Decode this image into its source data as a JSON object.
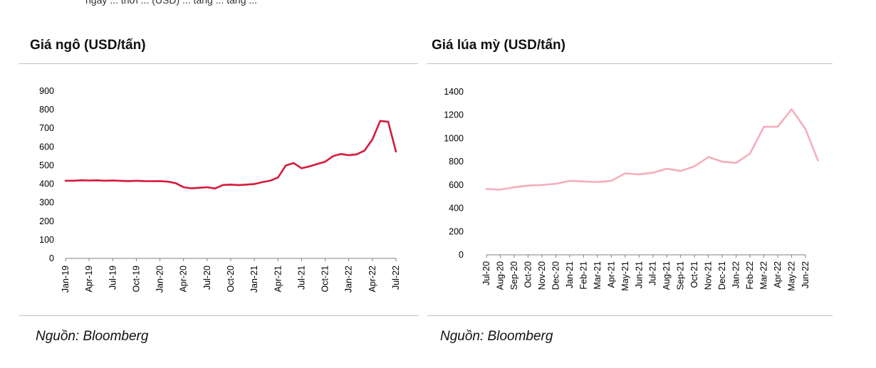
{
  "top_caption": "ngày ... thời ... (USD) ... tăng ... tăng ...",
  "chart_data": [
    {
      "type": "line",
      "title": "Giá ngô (USD/tấn)",
      "source": "Nguồn: Bloomberg",
      "ylim": [
        0,
        900
      ],
      "yticks": [
        0,
        100,
        200,
        300,
        400,
        500,
        600,
        700,
        800,
        900
      ],
      "xtick_labels": [
        "Jan-19",
        "Apr-19",
        "Jul-19",
        "Oct-19",
        "Jan-20",
        "Apr-20",
        "Jul-20",
        "Oct-20",
        "Jan-21",
        "Apr-21",
        "Jul-21",
        "Oct-21",
        "Jan-22",
        "Apr-22",
        "Jul-22"
      ],
      "color": "#d7193b",
      "grid": false,
      "series": [
        {
          "x": [
            "Jan-19",
            "Feb-19",
            "Mar-19",
            "Apr-19",
            "May-19",
            "Jun-19",
            "Jul-19",
            "Aug-19",
            "Sep-19",
            "Oct-19",
            "Nov-19",
            "Dec-19",
            "Jan-20",
            "Feb-20",
            "Mar-20",
            "Apr-20",
            "May-20",
            "Jun-20",
            "Jul-20",
            "Aug-20",
            "Sep-20",
            "Oct-20",
            "Nov-20",
            "Dec-20",
            "Jan-21",
            "Feb-21",
            "Mar-21",
            "Apr-21",
            "May-21",
            "Jun-21",
            "Jul-21",
            "Aug-21",
            "Sep-21",
            "Oct-21",
            "Nov-21",
            "Dec-21",
            "Jan-22",
            "Feb-22",
            "Mar-22",
            "Apr-22",
            "May-22",
            "Jun-22",
            "Jul-22"
          ],
          "values": [
            418,
            418,
            420,
            419,
            420,
            418,
            419,
            417,
            416,
            418,
            416,
            415,
            416,
            413,
            405,
            383,
            377,
            380,
            383,
            376,
            395,
            397,
            394,
            397,
            400,
            410,
            418,
            435,
            500,
            513,
            485,
            495,
            508,
            520,
            550,
            562,
            555,
            560,
            580,
            640,
            740,
            735,
            575
          ]
        }
      ]
    },
    {
      "type": "line",
      "title": "Giá lúa mỳ (USD/tấn)",
      "source": "Nguồn: Bloomberg",
      "ylim": [
        0,
        1400
      ],
      "yticks": [
        0,
        200,
        400,
        600,
        800,
        1000,
        1200,
        1400
      ],
      "xtick_labels": [
        "Jul-20",
        "Aug-20",
        "Sep-20",
        "Oct-20",
        "Nov-20",
        "Dec-20",
        "Jan-21",
        "Feb-21",
        "Mar-21",
        "Apr-21",
        "May-21",
        "Jun-21",
        "Jul-21",
        "Aug-21",
        "Sep-21",
        "Oct-21",
        "Nov-21",
        "Dec-21",
        "Jan-22",
        "Feb-22",
        "Mar-22",
        "Apr-22",
        "May-22",
        "Jun-22"
      ],
      "color": "#f4aebb",
      "grid": false,
      "series": [
        {
          "x": [
            "Jul-20",
            "Aug-20",
            "Sep-20",
            "Oct-20",
            "Nov-20",
            "Dec-20",
            "Jan-21",
            "Feb-21",
            "Mar-21",
            "Apr-21",
            "May-21",
            "Jun-21",
            "Jul-21",
            "Aug-21",
            "Sep-21",
            "Oct-21",
            "Nov-21",
            "Dec-21",
            "Jan-22",
            "Feb-22",
            "Mar-22",
            "Apr-22",
            "May-22",
            "Jun-22",
            "Jul-22"
          ],
          "values": [
            565,
            560,
            580,
            595,
            600,
            610,
            635,
            630,
            625,
            635,
            700,
            690,
            705,
            740,
            720,
            760,
            840,
            800,
            790,
            870,
            1100,
            1100,
            1250,
            1080,
            810
          ]
        }
      ]
    }
  ]
}
